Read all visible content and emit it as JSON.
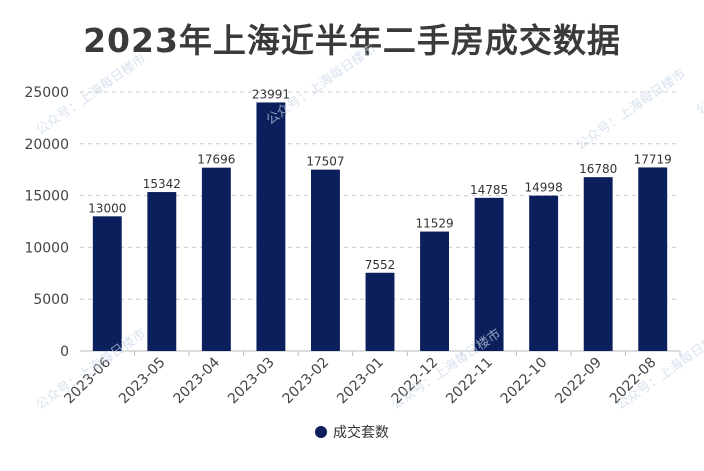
{
  "chart_data": {
    "type": "bar",
    "title": "2023年上海近半年二手房成交数据",
    "categories": [
      "2023-06",
      "2023-05",
      "2023-04",
      "2023-03",
      "2023-02",
      "2023-01",
      "2022-12",
      "2022-11",
      "2022-10",
      "2022-09",
      "2022-08"
    ],
    "series": [
      {
        "name": "成交套数",
        "values": [
          13000,
          15342,
          17696,
          23991,
          17507,
          7552,
          11529,
          14785,
          14998,
          16780,
          17719
        ]
      }
    ],
    "yticks": [
      0,
      5000,
      10000,
      15000,
      20000,
      25000
    ],
    "ylim": [
      0,
      25000
    ],
    "grid": true,
    "legend": "bottom-center",
    "bar_color": "#0b1f5c"
  },
  "watermark": "公众号：上海每日楼市"
}
